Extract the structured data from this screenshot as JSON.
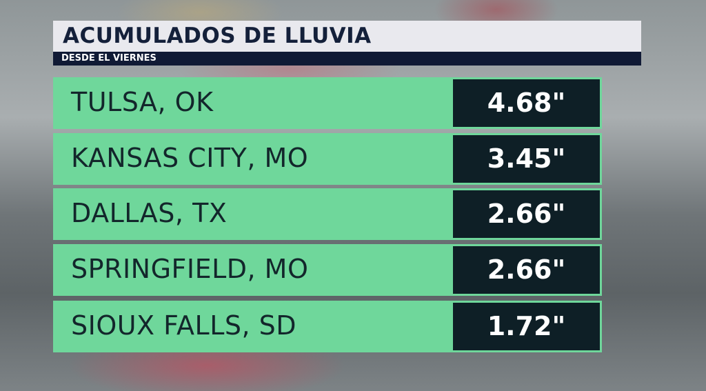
{
  "header": {
    "title": "ACUMULADOS DE LLUVIA",
    "subtitle": "DESDE EL VIERNES"
  },
  "table": {
    "rows": [
      [
        "TULSA, OK",
        "4.68\""
      ],
      [
        "KANSAS CITY, MO",
        "3.45\""
      ],
      [
        "DALLAS, TX",
        "2.66\""
      ],
      [
        "SPRINGFIELD, MO",
        "2.66\""
      ],
      [
        "SIOUX FALLS, SD",
        "1.72\""
      ]
    ]
  }
}
